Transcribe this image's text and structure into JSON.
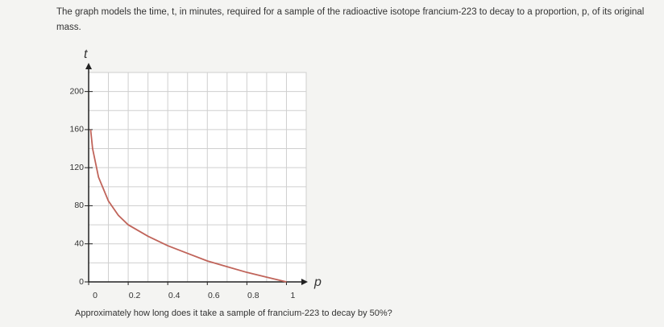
{
  "intro": "The graph models the time, t, in minutes, required for a sample of the radioactive isotope francium-223 to decay to a proportion, p, of its original mass.",
  "chart_data": {
    "type": "line",
    "x_label": "p",
    "y_label": "t",
    "x": [
      0.01,
      0.02,
      0.05,
      0.1,
      0.15,
      0.2,
      0.3,
      0.4,
      0.5,
      0.6,
      0.7,
      0.8,
      0.9,
      1.0
    ],
    "series": [
      {
        "color": "#c0645a",
        "values": [
          160,
          140,
          110,
          85,
          70,
          60,
          48,
          38,
          30,
          22,
          16,
          10,
          5,
          0
        ]
      }
    ],
    "xlim": [
      0,
      1.1
    ],
    "ylim": [
      0,
      220
    ],
    "xticks": [
      0,
      0.2,
      0.4,
      0.6,
      0.8,
      1
    ],
    "yticks": [
      0,
      40,
      80,
      120,
      160,
      200
    ],
    "x_grid": [
      0.1,
      0.2,
      0.3,
      0.4,
      0.5,
      0.6,
      0.7,
      0.8,
      0.9,
      1.0,
      1.1
    ],
    "y_grid": [
      20,
      40,
      60,
      80,
      100,
      120,
      140,
      160,
      180,
      200,
      220
    ],
    "grid": true
  },
  "question": "Approximately how long does it take a sample of francium-223 to decay by 50%?"
}
